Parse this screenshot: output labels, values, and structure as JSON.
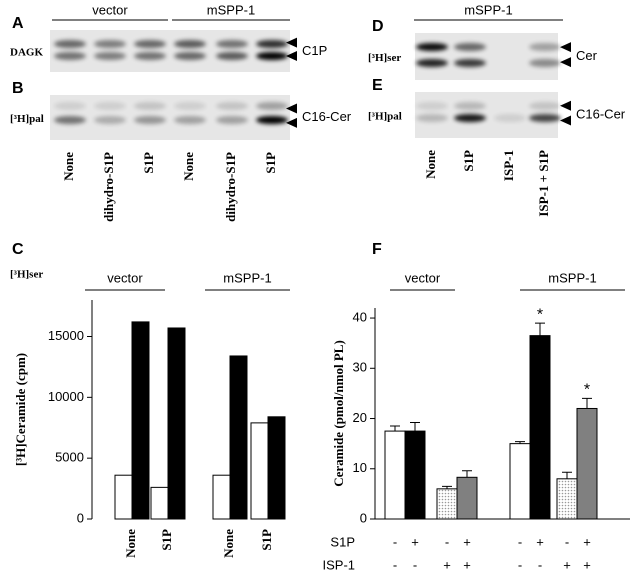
{
  "blots_left": {
    "groups": [
      "vector",
      "mSPP-1"
    ],
    "rows": [
      {
        "letter": "A",
        "label": "DAGK",
        "band": "C1P"
      },
      {
        "letter": "B",
        "label": "[³H]pal",
        "band": "C16-Cer"
      }
    ],
    "lanes": [
      "None",
      "dihydro-S1P",
      "S1P",
      "None",
      "dihydro-S1P",
      "S1P"
    ]
  },
  "blots_right": {
    "groups": [
      "mSPP-1"
    ],
    "rows": [
      {
        "letter": "D",
        "label": "[³H]ser",
        "band": "Cer"
      },
      {
        "letter": "E",
        "label": "[³H]pal",
        "band": "C16-Cer"
      }
    ],
    "lanes": [
      "None",
      "S1P",
      "ISP-1",
      "ISP-1 + S1P"
    ]
  },
  "chart_data": [
    {
      "type": "bar",
      "panel": "C",
      "subtitle": "[³H]ser",
      "group_labels": [
        "vector",
        "mSPP-1"
      ],
      "ylabel": "[³H]Ceramide (cpm)",
      "categories": [
        "None",
        "S1P",
        "None",
        "S1P"
      ],
      "series": [
        {
          "color": "#ffffff",
          "values": [
            3600,
            2600,
            3600,
            7900
          ]
        },
        {
          "color": "#000000",
          "values": [
            16200,
            15700,
            13400,
            8400
          ]
        }
      ],
      "ylim": [
        0,
        18000
      ],
      "yticks": [
        0,
        5000,
        10000,
        15000
      ]
    },
    {
      "type": "bar",
      "panel": "F",
      "group_labels": [
        "vector",
        "mSPP-1"
      ],
      "ylabel": "Ceramide  (pmol/nmol PL)",
      "values": [
        17.5,
        17.5,
        6,
        8.3,
        15,
        36.5,
        8,
        22
      ],
      "errors": [
        1,
        1.7,
        0.5,
        1.3,
        0.4,
        2.5,
        1.3,
        2
      ],
      "colors": [
        "#ffffff",
        "#000000",
        "#e4e4e4",
        "#808080",
        "#ffffff",
        "#000000",
        "#e4e4e4",
        "#808080"
      ],
      "annotations": [
        null,
        null,
        null,
        null,
        null,
        "*",
        null,
        "*"
      ],
      "conditions": [
        {
          "name": "S1P",
          "signs": [
            "-",
            "+",
            "-",
            "+",
            "-",
            "+",
            "-",
            "+"
          ]
        },
        {
          "name": "ISP-1",
          "signs": [
            "-",
            "-",
            "+",
            "+",
            "-",
            "-",
            "+",
            "+"
          ]
        }
      ],
      "ylim": [
        0,
        42
      ],
      "yticks": [
        0,
        10,
        20,
        30,
        40
      ]
    }
  ]
}
